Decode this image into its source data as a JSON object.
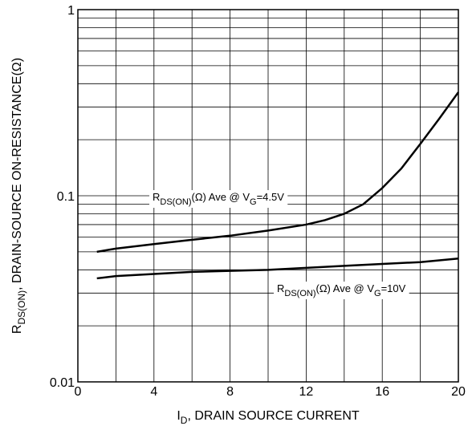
{
  "chart_data": {
    "type": "line",
    "ylog": true,
    "grid": true,
    "ylabel": [
      "R",
      "DS(ON)",
      ", DRAIN-SOURCE ON-RESISTANCE(Ω)"
    ],
    "xlabel": [
      "I",
      "D",
      ", DRAIN SOURCE CURRENT"
    ],
    "xlim": [
      0,
      20
    ],
    "xticks": [
      0,
      4,
      8,
      12,
      16,
      20
    ],
    "minor_xticks": [
      2,
      6,
      10,
      14,
      18
    ],
    "ylim": [
      0.01,
      1
    ],
    "yticks": [
      0.01,
      0.1,
      1
    ],
    "minor_yticks": [
      0.02,
      0.03,
      0.04,
      0.05,
      0.06,
      0.07,
      0.08,
      0.09,
      0.2,
      0.3,
      0.4,
      0.5,
      0.6,
      0.7,
      0.8,
      0.9
    ],
    "series": [
      {
        "label": [
          "R",
          "DS(ON)",
          "(Ω) Ave @ V",
          "G",
          "=4.5V"
        ],
        "color": "#000000",
        "x": [
          1,
          2,
          4,
          6,
          8,
          10,
          12,
          13,
          14,
          15,
          16,
          17,
          18,
          19,
          20
        ],
        "values": [
          0.05,
          0.052,
          0.055,
          0.058,
          0.061,
          0.065,
          0.07,
          0.074,
          0.08,
          0.09,
          0.11,
          0.14,
          0.19,
          0.26,
          0.36
        ]
      },
      {
        "label": [
          "R",
          "DS(ON)",
          "(Ω) Ave @ V",
          "G",
          "=10V"
        ],
        "color": "#000000",
        "x": [
          1,
          2,
          4,
          6,
          8,
          10,
          12,
          14,
          16,
          18,
          20
        ],
        "values": [
          0.036,
          0.037,
          0.038,
          0.039,
          0.0395,
          0.04,
          0.041,
          0.042,
          0.043,
          0.044,
          0.046
        ]
      }
    ]
  }
}
